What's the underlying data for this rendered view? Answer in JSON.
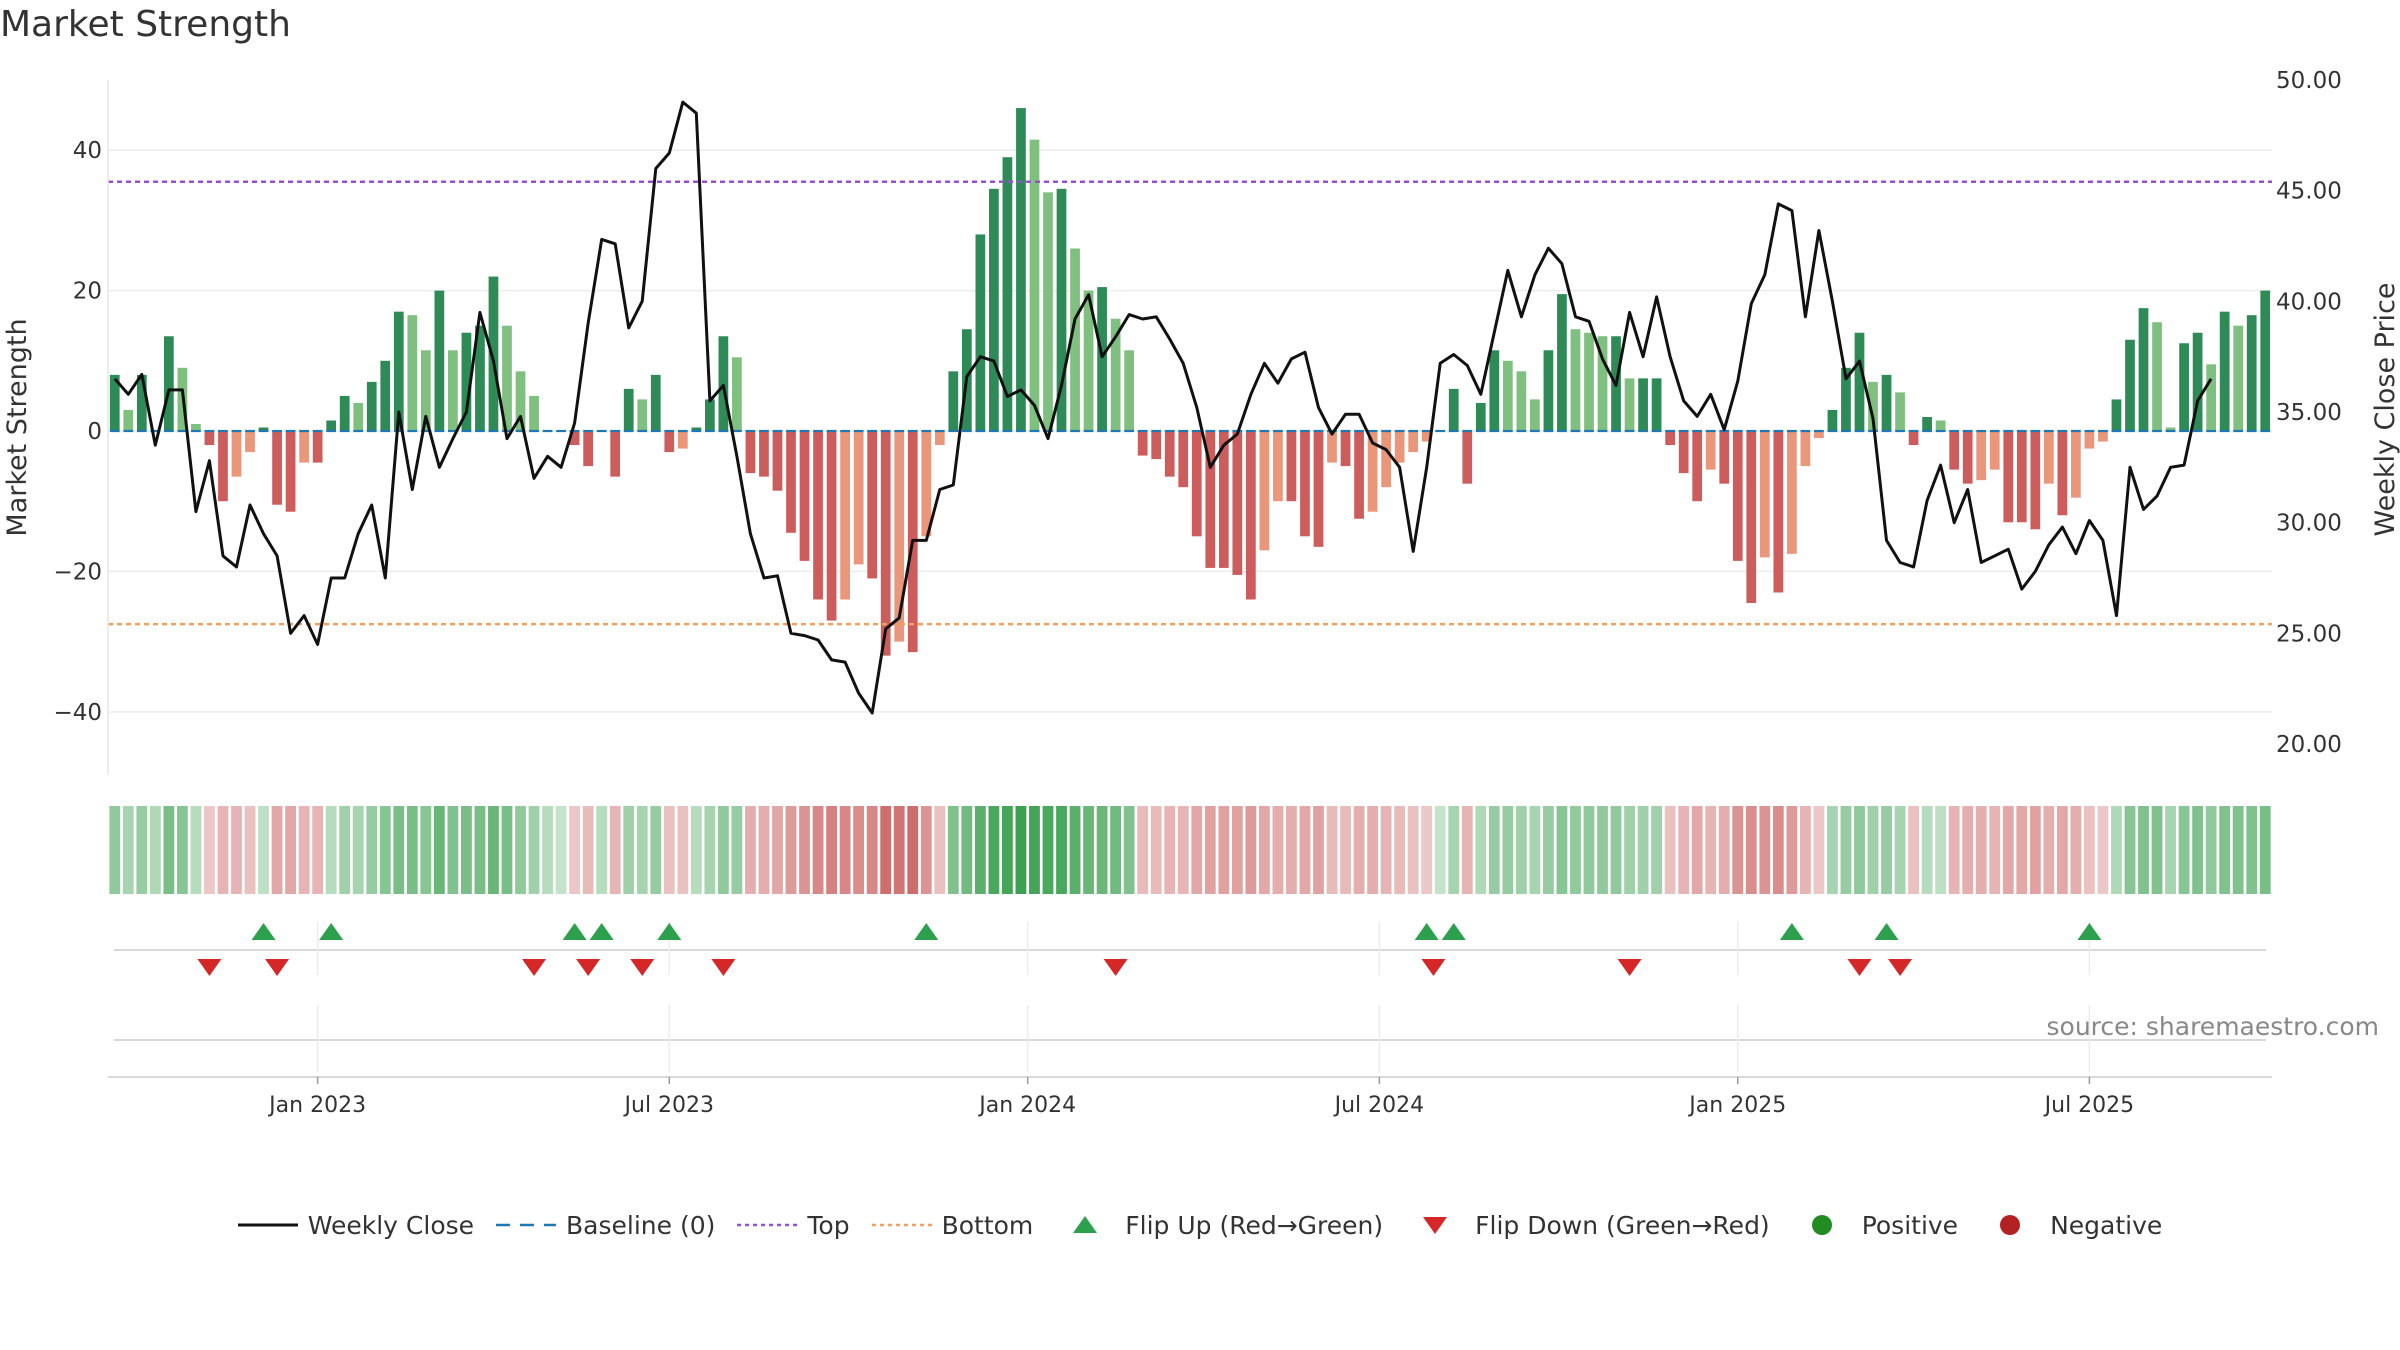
{
  "title": "Market Strength",
  "source": "source: sharemaestro.com",
  "colors": {
    "strong_green": "#2e8b57",
    "light_green": "#7fbf7f",
    "strong_red": "#cd5c5c",
    "light_red": "#e9967a",
    "price_line": "#111111",
    "baseline": "#1f77b4",
    "top": "#9a4fd1",
    "bottom": "#f0a060",
    "flip_up": "#2ca04c",
    "flip_down": "#d62728"
  },
  "legend": [
    {
      "kind": "line",
      "label": "Weekly Close"
    },
    {
      "kind": "dash",
      "label": "Baseline (0)"
    },
    {
      "kind": "dot-purple",
      "label": "Top"
    },
    {
      "kind": "dot-orange",
      "label": "Bottom"
    },
    {
      "kind": "tri-up",
      "label": "Flip Up (Red→Green)"
    },
    {
      "kind": "tri-down",
      "label": "Flip Down (Green→Red)"
    },
    {
      "kind": "circle-green",
      "label": "Positive"
    },
    {
      "kind": "circle-red",
      "label": "Negative"
    }
  ],
  "chart_data": {
    "type": "bar",
    "left_axis": {
      "label": "Market Strength",
      "ticks": [
        40,
        20,
        0,
        -20,
        -40
      ],
      "tick_labels": [
        "40",
        "20",
        "0",
        "−20",
        "−40"
      ],
      "range": [
        -49,
        50
      ]
    },
    "right_axis": {
      "label": "Weekly Close Price",
      "ticks": [
        50,
        45,
        40,
        35,
        30,
        25,
        20
      ],
      "tick_labels": [
        "50.00",
        "45.00",
        "40.00",
        "35.00",
        "30.00",
        "25.00",
        "20.00"
      ],
      "range": [
        18.6,
        50
      ]
    },
    "x_labels": [
      {
        "week": 15,
        "label": "Jan 2023"
      },
      {
        "week": 41,
        "label": "Jul 2023"
      },
      {
        "week": 67.5,
        "label": "Jan 2024"
      },
      {
        "week": 93.5,
        "label": "Jul 2024"
      },
      {
        "week": 120,
        "label": "Jan 2025"
      },
      {
        "week": 146,
        "label": "Jul 2025"
      }
    ],
    "top_level": 35.5,
    "bottom_level": -27.5,
    "strength": [
      8,
      3,
      8,
      0,
      13.5,
      9,
      1,
      -2,
      -10,
      -6.5,
      -3,
      0.5,
      -10.5,
      -11.5,
      -4.5,
      -4.5,
      1.5,
      5,
      4,
      7,
      10,
      17,
      16.5,
      11.5,
      20,
      11.5,
      14,
      15,
      22,
      15,
      8.5,
      5,
      0,
      0,
      -2,
      -5,
      0,
      -6.5,
      6,
      4.5,
      8,
      -3,
      -2.5,
      0.5,
      4.5,
      13.5,
      10.5,
      -6,
      -6.5,
      -8.5,
      -14.5,
      -18.5,
      -24,
      -27,
      -24,
      -19,
      -21,
      -32,
      -30,
      -31.5,
      -15,
      -2,
      8.5,
      14.5,
      28,
      34.5,
      39,
      46,
      41.5,
      34,
      34.5,
      26,
      20,
      20.5,
      16,
      11.5,
      -3.5,
      -4,
      -6.5,
      -8,
      -15,
      -19.5,
      -19.5,
      -20.5,
      -24,
      -17,
      -10,
      -10,
      -15,
      -16.5,
      -4.5,
      -5,
      -12.5,
      -11.5,
      -8,
      -4.5,
      -3,
      -1.5,
      0,
      6,
      -7.5,
      4,
      11.5,
      10,
      8.5,
      4.5,
      11.5,
      19.5,
      14.5,
      14,
      13.5,
      13.5,
      7.5,
      7.5,
      7.5,
      -2,
      -6,
      -10,
      -5.5,
      -7.5,
      -18.5,
      -24.5,
      -18,
      -23,
      -17.5,
      -5,
      -1,
      3,
      9,
      14,
      7,
      8,
      5.5,
      -2,
      2,
      1.5,
      -5.5,
      -7.5,
      -7,
      -5.5,
      -13,
      -13,
      -14,
      -7.5,
      -12,
      -9.5,
      -2.5,
      -1.5,
      4.5,
      13,
      17.5,
      15.5,
      0.5,
      12.5,
      14,
      9.5,
      17,
      15,
      16.5,
      20
    ],
    "weekly_close": [
      36.5,
      35.8,
      36.7,
      33.5,
      36,
      36,
      30.5,
      32.8,
      28.5,
      28,
      30.8,
      29.5,
      28.5,
      25,
      25.8,
      24.5,
      27.5,
      27.5,
      29.5,
      30.8,
      27.5,
      35,
      31.5,
      34.8,
      32.5,
      33.8,
      35,
      39.5,
      37.3,
      33.8,
      34.8,
      32,
      33,
      32.5,
      34.5,
      39,
      42.8,
      42.6,
      38.8,
      40,
      46,
      46.7,
      49,
      48.5,
      35.5,
      36.2,
      33,
      29.5,
      27.5,
      27.6,
      25,
      24.9,
      24.7,
      23.8,
      23.7,
      22.3,
      21.4,
      25.2,
      25.7,
      29.2,
      29.2,
      31.5,
      31.7,
      36.6,
      37.5,
      37.3,
      35.7,
      36,
      35.3,
      33.8,
      36.2,
      39.2,
      40.3,
      37.5,
      38.4,
      39.4,
      39.2,
      39.3,
      38.3,
      37.2,
      35.2,
      32.5,
      33.5,
      34,
      35.8,
      37.2,
      36.3,
      37.4,
      37.7,
      35.2,
      34,
      34.9,
      34.9,
      33.6,
      33.3,
      32.5,
      28.7,
      32.5,
      37.2,
      37.6,
      37.1,
      35.8,
      38.6,
      41.4,
      39.3,
      41.2,
      42.4,
      41.7,
      39.3,
      39.1,
      37.4,
      36.2,
      39.5,
      37.5,
      40.2,
      37.5,
      35.5,
      34.8,
      35.8,
      34.2,
      36.4,
      39.9,
      41.2,
      44.4,
      44.1,
      39.3,
      43.2,
      40,
      36.5,
      37.3,
      34.7,
      29.2,
      28.2,
      28,
      31,
      32.6,
      30,
      31.5,
      28.2,
      28.5,
      28.8,
      27,
      27.8,
      29,
      29.8,
      28.6,
      30.1,
      29.2,
      25.8,
      32.5,
      30.6,
      31.2,
      32.5,
      32.6,
      35.5,
      36.5
    ],
    "strip": [
      0.45,
      0.3,
      0.4,
      0.25,
      0.6,
      0.5,
      0.2,
      -0.15,
      -0.3,
      -0.3,
      -0.2,
      0.15,
      -0.4,
      -0.4,
      -0.3,
      -0.3,
      0.2,
      0.35,
      0.3,
      0.4,
      0.5,
      0.6,
      0.6,
      0.5,
      0.7,
      0.55,
      0.6,
      0.6,
      0.7,
      0.6,
      0.45,
      0.35,
      0.2,
      0.1,
      -0.15,
      -0.25,
      0.2,
      -0.3,
      0.35,
      0.3,
      0.4,
      -0.2,
      -0.2,
      0.2,
      0.3,
      0.45,
      0.4,
      -0.35,
      -0.35,
      -0.4,
      -0.5,
      -0.55,
      -0.65,
      -0.7,
      -0.65,
      -0.6,
      -0.65,
      -0.85,
      -0.8,
      -0.85,
      -0.55,
      -0.2,
      0.55,
      0.65,
      0.8,
      0.9,
      0.95,
      1,
      0.95,
      0.9,
      0.9,
      0.8,
      0.7,
      0.7,
      0.65,
      0.55,
      -0.25,
      -0.25,
      -0.3,
      -0.3,
      -0.4,
      -0.45,
      -0.45,
      -0.45,
      -0.5,
      -0.4,
      -0.35,
      -0.35,
      -0.4,
      -0.45,
      -0.25,
      -0.25,
      -0.35,
      -0.35,
      -0.3,
      -0.25,
      -0.2,
      -0.15,
      0.1,
      0.3,
      -0.3,
      0.25,
      0.4,
      0.4,
      0.35,
      0.3,
      0.4,
      0.5,
      0.45,
      0.45,
      0.45,
      0.45,
      0.35,
      0.35,
      0.35,
      -0.2,
      -0.3,
      -0.4,
      -0.3,
      -0.35,
      -0.55,
      -0.6,
      -0.55,
      -0.6,
      -0.5,
      -0.3,
      -0.15,
      0.3,
      0.4,
      0.45,
      0.35,
      0.4,
      0.3,
      -0.2,
      0.2,
      0.15,
      -0.3,
      -0.35,
      -0.35,
      -0.3,
      -0.4,
      -0.4,
      -0.45,
      -0.35,
      -0.4,
      -0.35,
      -0.2,
      -0.15,
      0.25,
      0.5,
      0.55,
      0.55,
      0.3,
      0.5,
      0.55,
      0.45,
      0.55,
      0.55,
      0.55,
      0.6
    ],
    "flip_up_weeks": [
      11,
      16,
      34,
      36,
      41,
      60,
      97,
      99,
      124,
      131,
      146
    ],
    "flip_down_weeks": [
      7,
      12,
      31,
      35,
      39,
      45,
      74,
      97.5,
      112,
      129,
      132
    ]
  }
}
